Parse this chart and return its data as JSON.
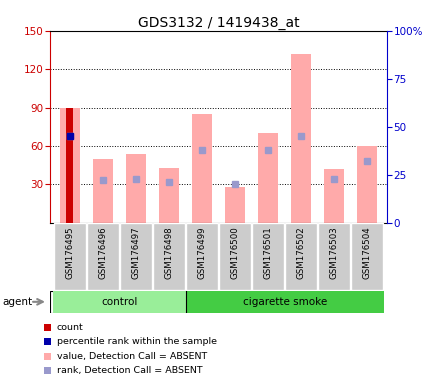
{
  "title": "GDS3132 / 1419438_at",
  "samples": [
    "GSM176495",
    "GSM176496",
    "GSM176497",
    "GSM176498",
    "GSM176499",
    "GSM176500",
    "GSM176501",
    "GSM176502",
    "GSM176503",
    "GSM176504"
  ],
  "value_bars": [
    90,
    50,
    54,
    43,
    85,
    28,
    70,
    132,
    42,
    60
  ],
  "rank_dots_pct": [
    45,
    22,
    23,
    21,
    38,
    20,
    38,
    45,
    23,
    32
  ],
  "count_val": 90,
  "percentile_pct": 45,
  "ylim_left": [
    0,
    150
  ],
  "ylim_right": [
    0,
    100
  ],
  "yticks_left": [
    30,
    60,
    90,
    120,
    150
  ],
  "yticks_right": [
    0,
    25,
    50,
    75,
    100
  ],
  "yticklabels_right": [
    "0",
    "25",
    "50",
    "75",
    "100%"
  ],
  "left_axis_color": "#cc0000",
  "right_axis_color": "#0000cc",
  "bar_color_value": "#ffaaaa",
  "bar_color_rank": "#9999cc",
  "bar_color_count": "#cc0000",
  "bar_color_percentile": "#0000aa",
  "control_color": "#99ee99",
  "smoke_color": "#44cc44",
  "tick_box_color": "#cccccc",
  "agent_label": "agent",
  "control_label": "control",
  "smoke_label": "cigarette smoke",
  "legend_items": [
    {
      "color": "#cc0000",
      "label": "count"
    },
    {
      "color": "#0000aa",
      "label": "percentile rank within the sample"
    },
    {
      "color": "#ffaaaa",
      "label": "value, Detection Call = ABSENT"
    },
    {
      "color": "#9999cc",
      "label": "rank, Detection Call = ABSENT"
    }
  ]
}
